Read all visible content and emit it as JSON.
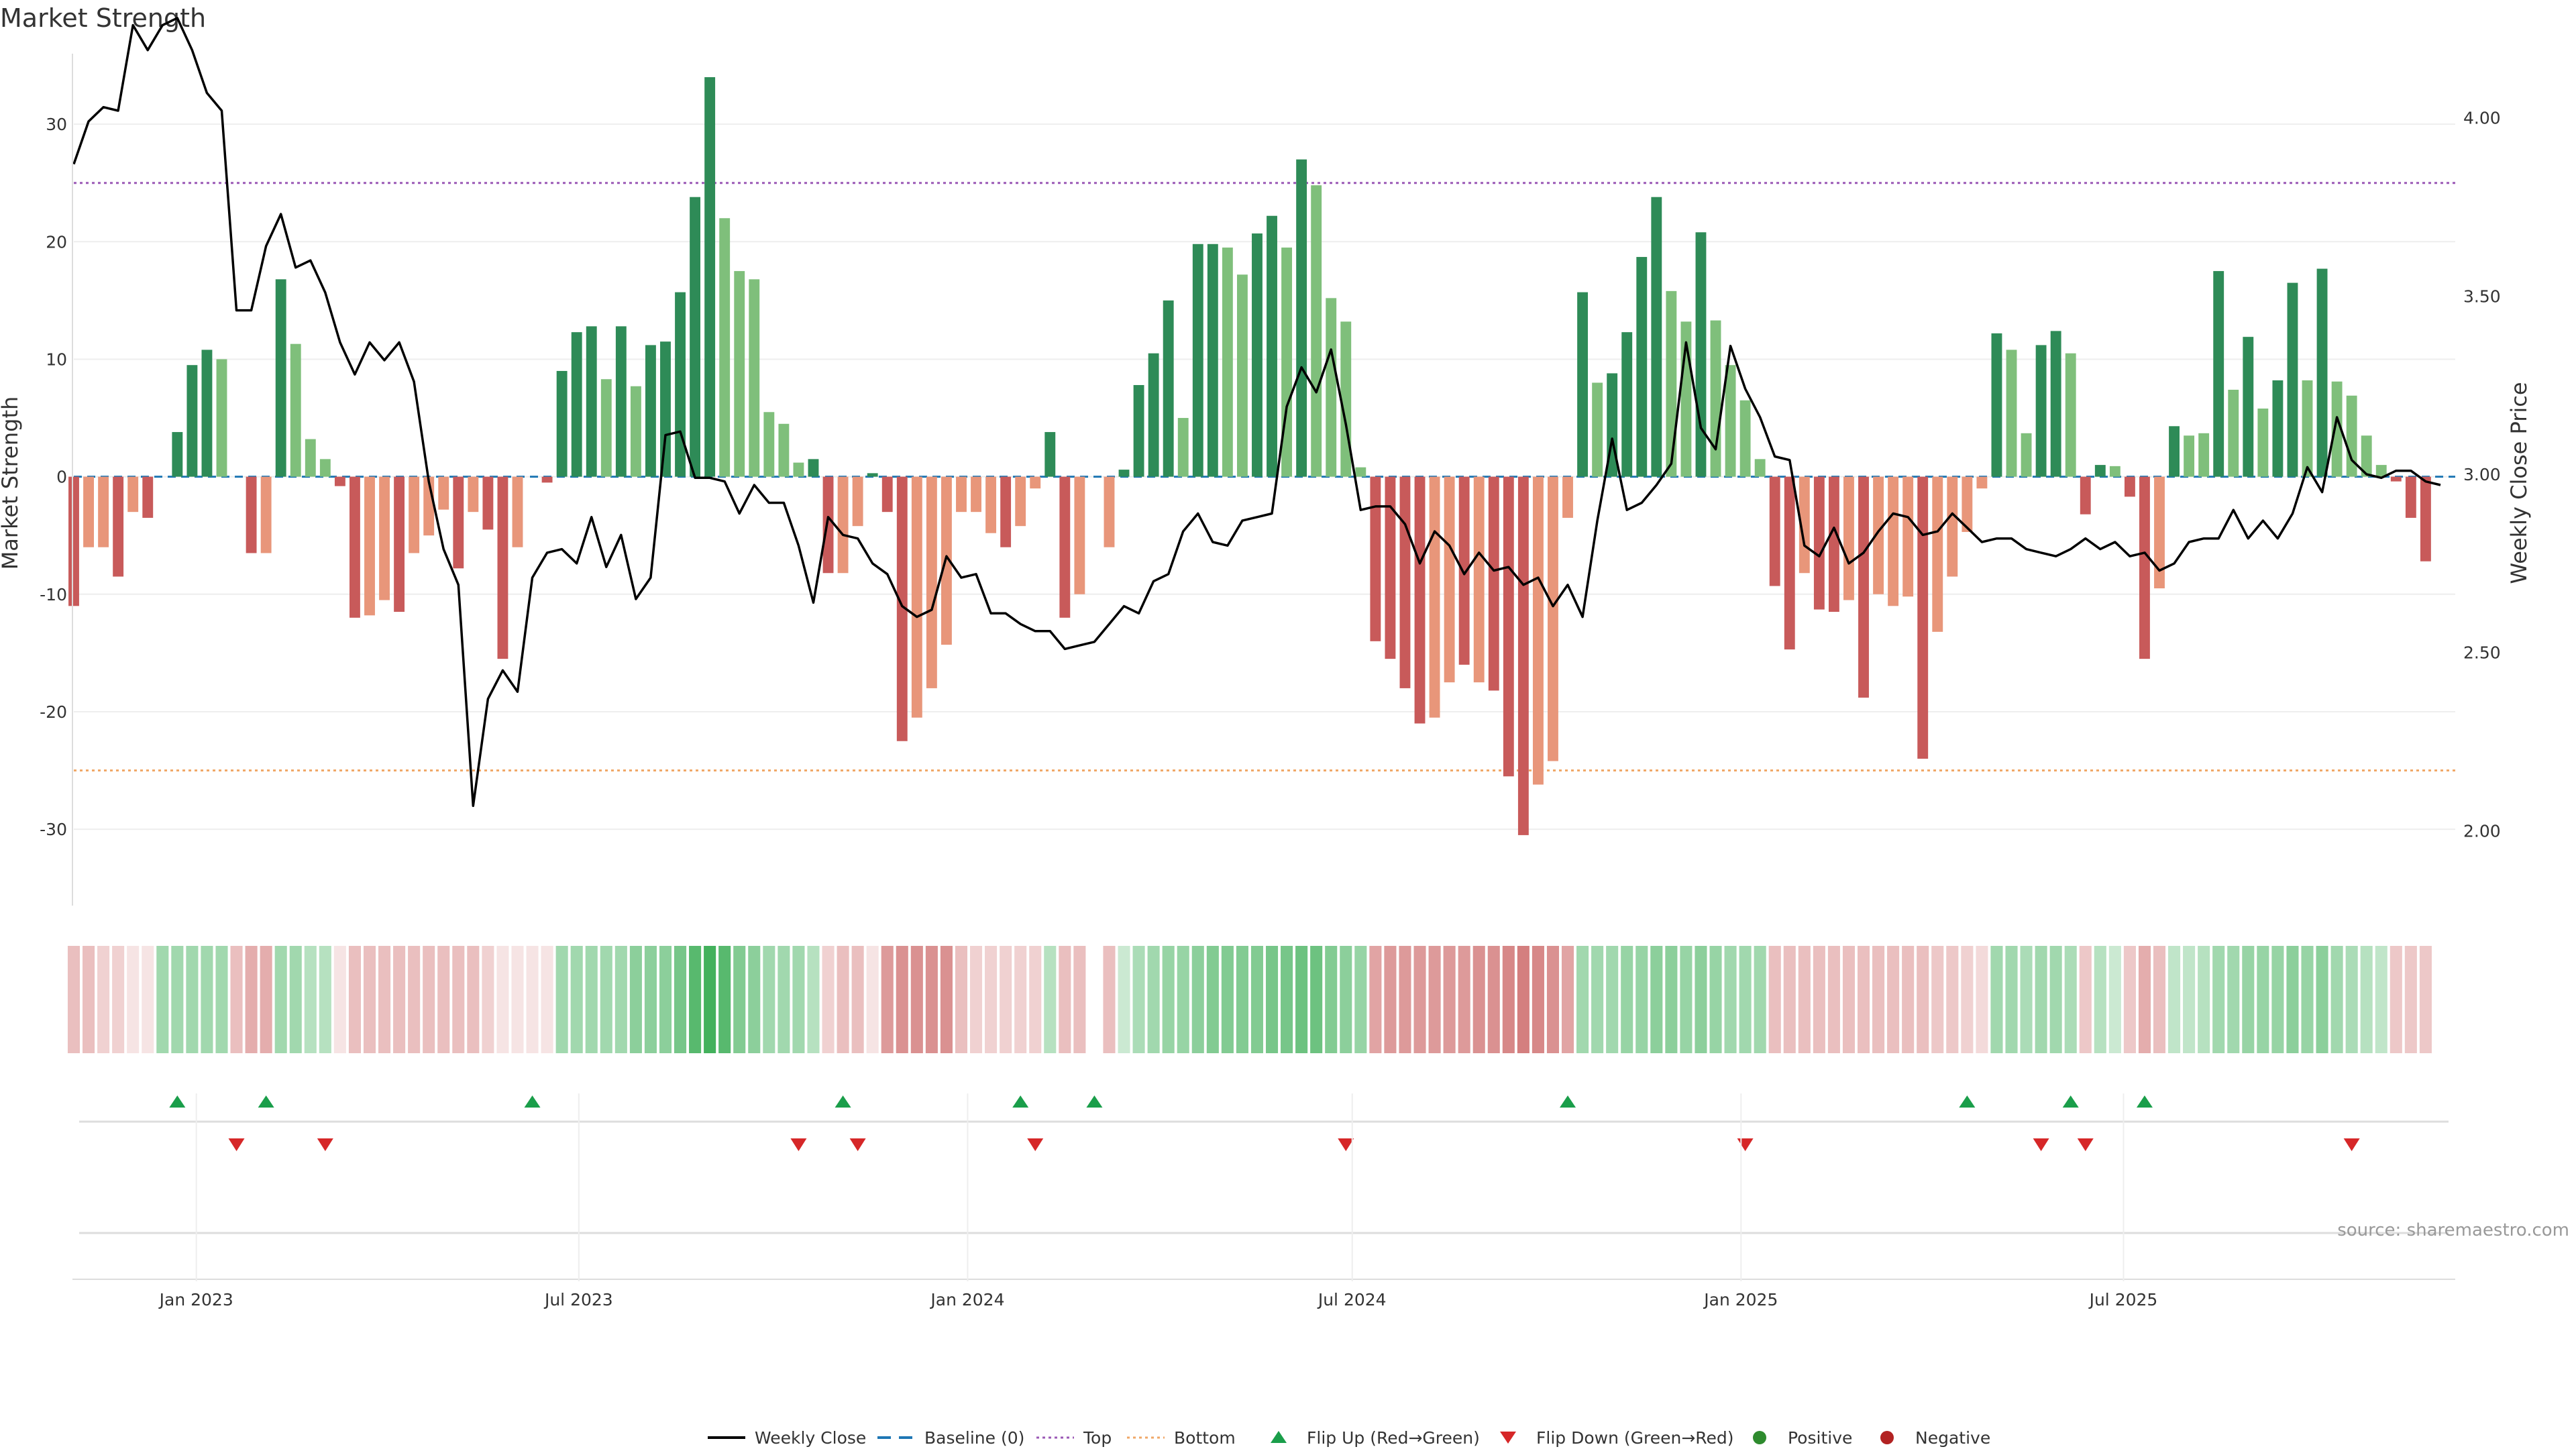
{
  "chart_data": {
    "type": "bar",
    "title": "Market Strength",
    "ylabel_left": "Market Strength",
    "ylabel_right": "Weekly Close Price",
    "left_ylim": [
      -36.5,
      36
    ],
    "left_ticks": [
      30,
      20,
      10,
      0,
      -10,
      -20,
      -30
    ],
    "right_ylim": [
      1.79,
      4.18
    ],
    "right_ticks": [
      2.0,
      2.5,
      3.0,
      3.5,
      4.0
    ],
    "right_tick_labels": [
      "2.00",
      "2.50",
      "3.00",
      "3.50",
      "4.00"
    ],
    "top_level": 25,
    "bottom_level": -25,
    "baseline": 0,
    "x_range": [
      "2022-11-04",
      "2025-12-05"
    ],
    "x_tick_labels": [
      "Jan 2023",
      "Jul 2023",
      "Jan 2024",
      "Jul 2024",
      "Jan 2025",
      "Jul 2025"
    ],
    "x_tick_dates": [
      "2023-01-01",
      "2023-07-01",
      "2024-01-01",
      "2024-07-01",
      "2025-01-01",
      "2025-07-01"
    ],
    "start_date": "2022-11-04",
    "week_days": 7,
    "bar_values": [
      -11,
      -6,
      -6,
      -8.5,
      -3,
      -3.5,
      0,
      3.8,
      9.5,
      10.8,
      10,
      0,
      -6.5,
      -6.5,
      16.8,
      11.3,
      3.2,
      1.5,
      -0.8,
      -12,
      -11.8,
      -10.5,
      -11.5,
      -6.5,
      -5,
      -2.8,
      -7.8,
      -3,
      -4.5,
      -15.5,
      -6,
      0,
      -0.5,
      9,
      12.3,
      12.8,
      8.3,
      12.8,
      7.7,
      11.2,
      11.5,
      15.7,
      23.8,
      34,
      22,
      17.5,
      16.8,
      5.5,
      4.5,
      1.2,
      1.5,
      -8.2,
      -8.2,
      -4.2,
      0.3,
      -3,
      -22.5,
      -20.5,
      -18,
      -14.3,
      -3,
      -3,
      -4.8,
      -6,
      -4.2,
      -1,
      3.8,
      -12,
      -10,
      0,
      -6,
      0.6,
      7.8,
      10.5,
      15,
      5,
      19.8,
      19.8,
      19.5,
      17.2,
      20.7,
      22.2,
      19.5,
      27,
      24.8,
      15.2,
      13.2,
      0.8,
      -14,
      -15.5,
      -18,
      -21,
      -20.5,
      -17.5,
      -16,
      -17.5,
      -18.2,
      -25.5,
      -30.5,
      -26.2,
      -24.2,
      -3.5,
      15.7,
      8,
      8.8,
      12.3,
      18.7,
      23.8,
      15.8,
      13.2,
      20.8,
      13.3,
      9.5,
      6.5,
      1.5,
      -9.3,
      -14.7,
      -8.2,
      -11.3,
      -11.5,
      -10.5,
      -18.8,
      -10,
      -11,
      -10.2,
      -24,
      -13.2,
      -8.5,
      -4.7,
      -1,
      12.2,
      10.8,
      3.7,
      11.2,
      12.4,
      10.5,
      -3.2,
      1,
      0.9,
      -1.7,
      -15.5,
      -9.5,
      4.3,
      3.5,
      3.7,
      17.5,
      7.4,
      11.9,
      5.8,
      8.2,
      16.5,
      8.2,
      17.7,
      8.1,
      6.9,
      3.5,
      1,
      -0.4,
      -3.5,
      -7.2
    ],
    "bar_shades": [
      "dark_red",
      "light_red",
      "light_red",
      "dark_red",
      "light_red",
      "dark_red",
      "none",
      "dark_green",
      "dark_green",
      "dark_green",
      "light_green",
      "none",
      "dark_red",
      "light_red",
      "dark_green",
      "light_green",
      "light_green",
      "light_green",
      "dark_red",
      "dark_red",
      "light_red",
      "light_red",
      "dark_red",
      "light_red",
      "light_red",
      "light_red",
      "dark_red",
      "light_red",
      "dark_red",
      "dark_red",
      "light_red",
      "none",
      "dark_red",
      "dark_green",
      "dark_green",
      "dark_green",
      "light_green",
      "dark_green",
      "light_green",
      "dark_green",
      "dark_green",
      "dark_green",
      "dark_green",
      "dark_green",
      "light_green",
      "light_green",
      "light_green",
      "light_green",
      "light_green",
      "light_green",
      "dark_green",
      "dark_red",
      "light_red",
      "light_red",
      "dark_green",
      "dark_red",
      "dark_red",
      "light_red",
      "light_red",
      "light_red",
      "light_red",
      "light_red",
      "light_red",
      "dark_red",
      "light_red",
      "light_red",
      "dark_green",
      "dark_red",
      "light_red",
      "none",
      "light_red",
      "dark_green",
      "dark_green",
      "dark_green",
      "dark_green",
      "light_green",
      "dark_green",
      "dark_green",
      "light_green",
      "light_green",
      "dark_green",
      "dark_green",
      "light_green",
      "dark_green",
      "light_green",
      "light_green",
      "light_green",
      "light_green",
      "dark_red",
      "dark_red",
      "dark_red",
      "dark_red",
      "light_red",
      "light_red",
      "dark_red",
      "light_red",
      "dark_red",
      "dark_red",
      "dark_red",
      "light_red",
      "light_red",
      "light_red",
      "dark_green",
      "light_green",
      "dark_green",
      "dark_green",
      "dark_green",
      "dark_green",
      "light_green",
      "light_green",
      "dark_green",
      "light_green",
      "light_green",
      "light_green",
      "light_green",
      "dark_red",
      "dark_red",
      "light_red",
      "dark_red",
      "dark_red",
      "light_red",
      "dark_red",
      "light_red",
      "light_red",
      "light_red",
      "dark_red",
      "light_red",
      "light_red",
      "light_red",
      "light_red",
      "dark_green",
      "light_green",
      "light_green",
      "dark_green",
      "dark_green",
      "light_green",
      "dark_red",
      "dark_green",
      "light_green",
      "dark_red",
      "dark_red",
      "light_red",
      "dark_green",
      "light_green",
      "light_green",
      "dark_green",
      "light_green",
      "dark_green",
      "light_green",
      "dark_green",
      "dark_green",
      "light_green",
      "dark_green",
      "light_green",
      "light_green",
      "light_green",
      "light_green",
      "dark_red",
      "dark_red",
      "dark_red"
    ],
    "weekly_close": [
      3.87,
      3.99,
      4.03,
      4.02,
      4.26,
      4.19,
      4.26,
      4.28,
      4.19,
      4.07,
      4.02,
      3.46,
      3.46,
      3.64,
      3.73,
      3.58,
      3.6,
      3.51,
      3.37,
      3.28,
      3.37,
      3.32,
      3.37,
      3.26,
      2.98,
      2.79,
      2.69,
      2.07,
      2.37,
      2.45,
      2.39,
      2.71,
      2.78,
      2.79,
      2.75,
      2.88,
      2.74,
      2.83,
      2.65,
      2.71,
      3.11,
      3.12,
      2.99,
      2.99,
      2.98,
      2.89,
      2.97,
      2.92,
      2.92,
      2.8,
      2.64,
      2.88,
      2.83,
      2.82,
      2.75,
      2.72,
      2.63,
      2.6,
      2.62,
      2.77,
      2.71,
      2.72,
      2.61,
      2.61,
      2.58,
      2.56,
      2.56,
      2.51,
      2.52,
      2.53,
      2.58,
      2.63,
      2.61,
      2.7,
      2.72,
      2.84,
      2.89,
      2.81,
      2.8,
      2.87,
      2.88,
      2.89,
      3.19,
      3.3,
      3.23,
      3.35,
      3.14,
      2.9,
      2.91,
      2.91,
      2.86,
      2.75,
      2.84,
      2.8,
      2.72,
      2.78,
      2.73,
      2.74,
      2.69,
      2.71,
      2.63,
      2.69,
      2.6,
      2.87,
      3.1,
      2.9,
      2.92,
      2.97,
      3.03,
      3.37,
      3.13,
      3.07,
      3.36,
      3.24,
      3.16,
      3.05,
      3.04,
      2.8,
      2.77,
      2.85,
      2.75,
      2.78,
      2.84,
      2.89,
      2.88,
      2.83,
      2.84,
      2.89,
      2.85,
      2.81,
      2.82,
      2.82,
      2.79,
      2.78,
      2.77,
      2.79,
      2.82,
      2.79,
      2.81,
      2.77,
      2.78,
      2.73,
      2.75,
      2.81,
      2.82,
      2.82,
      2.9,
      2.82,
      2.87,
      2.82,
      2.89,
      3.02,
      2.95,
      3.16,
      3.04,
      3.0,
      2.99,
      3.01,
      3.01,
      2.98,
      2.97
    ],
    "heat_levels": [
      -0.35,
      -0.35,
      -0.25,
      -0.25,
      -0.15,
      -0.15,
      0.45,
      0.45,
      0.45,
      0.45,
      0.45,
      -0.35,
      -0.45,
      -0.45,
      0.45,
      0.45,
      0.35,
      0.35,
      -0.15,
      -0.35,
      -0.35,
      -0.35,
      -0.35,
      -0.35,
      -0.35,
      -0.35,
      -0.35,
      -0.35,
      -0.25,
      -0.15,
      -0.15,
      -0.15,
      -0.15,
      0.45,
      0.45,
      0.45,
      0.45,
      0.45,
      0.55,
      0.55,
      0.55,
      0.65,
      0.8,
      0.9,
      0.8,
      0.6,
      0.55,
      0.45,
      0.45,
      0.45,
      0.35,
      -0.25,
      -0.35,
      -0.35,
      -0.15,
      -0.55,
      -0.6,
      -0.6,
      -0.6,
      -0.6,
      -0.35,
      -0.25,
      -0.25,
      -0.25,
      -0.25,
      -0.25,
      0.35,
      -0.35,
      -0.35,
      0,
      -0.35,
      0.25,
      0.4,
      0.45,
      0.5,
      0.5,
      0.55,
      0.6,
      0.6,
      0.6,
      0.6,
      0.65,
      0.65,
      0.7,
      0.7,
      0.6,
      0.55,
      0.5,
      -0.5,
      -0.55,
      -0.55,
      -0.55,
      -0.55,
      -0.55,
      -0.55,
      -0.6,
      -0.6,
      -0.65,
      -0.7,
      -0.65,
      -0.6,
      -0.5,
      0.45,
      0.45,
      0.45,
      0.5,
      0.5,
      0.55,
      0.55,
      0.5,
      0.55,
      0.5,
      0.45,
      0.45,
      0.45,
      -0.35,
      -0.35,
      -0.35,
      -0.35,
      -0.35,
      -0.35,
      -0.35,
      -0.35,
      -0.35,
      -0.35,
      -0.35,
      -0.3,
      -0.3,
      -0.25,
      -0.2,
      0.45,
      0.45,
      0.4,
      0.45,
      0.45,
      0.4,
      -0.3,
      0.35,
      0.25,
      -0.3,
      -0.45,
      -0.35,
      0.3,
      0.3,
      0.35,
      0.45,
      0.45,
      0.5,
      0.5,
      0.5,
      0.55,
      0.5,
      0.55,
      0.45,
      0.4,
      0.35,
      0.3,
      -0.3,
      -0.3,
      -0.3
    ],
    "flip_up_weeks": [
      7,
      13,
      31,
      52,
      64,
      69,
      101,
      128,
      135,
      140
    ],
    "flip_down_weeks": [
      11,
      17,
      49,
      53,
      65,
      86,
      113,
      133,
      136,
      154
    ],
    "source": "source: sharemaestro.com",
    "legend": [
      {
        "label": "Weekly Close",
        "type": "line",
        "color": "#000000"
      },
      {
        "label": "Baseline (0)",
        "type": "dash",
        "color": "#1f77b4"
      },
      {
        "label": "Top",
        "type": "dot",
        "color": "#9b59b6"
      },
      {
        "label": "Bottom",
        "type": "dot",
        "color": "#f0a868"
      },
      {
        "label": "Flip Up (Red→Green)",
        "type": "tri-up",
        "color": "#1a9e4a"
      },
      {
        "label": "Flip Down (Green→Red)",
        "type": "tri-down",
        "color": "#d62728"
      },
      {
        "label": "Positive",
        "type": "circle",
        "color": "#2e8b2e"
      },
      {
        "label": "Negative",
        "type": "circle",
        "color": "#b22222"
      }
    ],
    "colors": {
      "dark_green": "#2e8b57",
      "light_green": "#7fbf7b",
      "dark_red": "#c85a5a",
      "light_red": "#e8967a",
      "top_line": "#9b59b6",
      "bottom_line": "#f0a868",
      "baseline": "#1f77b4",
      "close_line": "#000000",
      "flip_up": "#1a9e4a",
      "flip_down": "#d62728"
    }
  }
}
